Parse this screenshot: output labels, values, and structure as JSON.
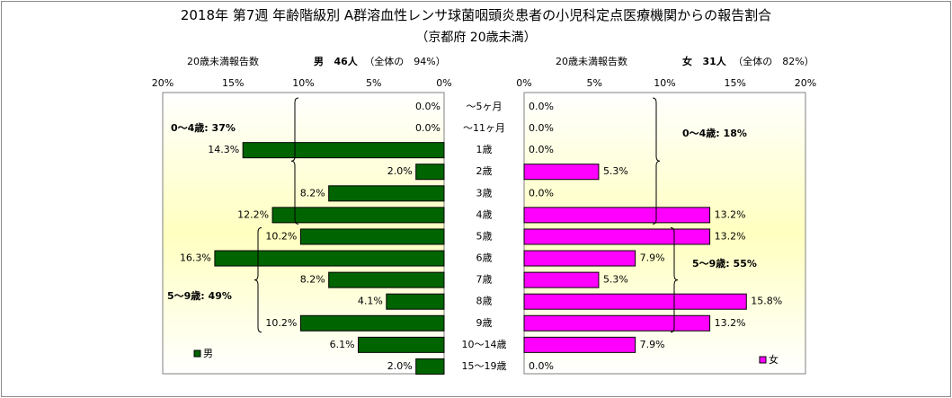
{
  "title": "2018年 第7週 年齢階級別 A群溶血性レンサ球菌咽頭炎患者の小児科定点医療機関からの報告割合",
  "subtitle": "（京都府 20歳未満）",
  "left_header": {
    "label": "20歳未満報告数",
    "sex": "男",
    "count": "46人",
    "ratio": "（全体の　94%）"
  },
  "right_header": {
    "label": "20歳未満報告数",
    "sex": "女",
    "count": "31人",
    "ratio": "（全体の　82%）"
  },
  "colors": {
    "male": "#006400",
    "female": "#ff00ff",
    "plot_bg_top": "#ffffff",
    "plot_bg_mid": "#ffffc0"
  },
  "chart_data": {
    "type": "bar",
    "orientation": "horizontal",
    "layout": "population-pyramid",
    "categories": [
      "～5ヶ月",
      "～11ヶ月",
      "1歳",
      "2歳",
      "3歳",
      "4歳",
      "5歳",
      "6歳",
      "7歳",
      "8歳",
      "9歳",
      "10～14歳",
      "15～19歳"
    ],
    "x_ticks": [
      "0%",
      "5%",
      "10%",
      "15%",
      "20%"
    ],
    "xlim": [
      0,
      20
    ],
    "series": [
      {
        "name": "男",
        "values": [
          0.0,
          0.0,
          14.3,
          2.0,
          8.2,
          12.2,
          10.2,
          16.3,
          8.2,
          4.1,
          10.2,
          6.1,
          2.0
        ],
        "labels": [
          "0.0%",
          "0.0%",
          "14.3%",
          "2.0%",
          "8.2%",
          "12.2%",
          "10.2%",
          "16.3%",
          "8.2%",
          "4.1%",
          "10.2%",
          "6.1%",
          "2.0%"
        ]
      },
      {
        "name": "女",
        "values": [
          0.0,
          0.0,
          0.0,
          5.3,
          0.0,
          13.2,
          13.2,
          7.9,
          5.3,
          15.8,
          13.2,
          7.9,
          0.0
        ],
        "labels": [
          "0.0%",
          "0.0%",
          "0.0%",
          "5.3%",
          "0.0%",
          "13.2%",
          "13.2%",
          "7.9%",
          "5.3%",
          "15.8%",
          "13.2%",
          "7.9%",
          "0.0%"
        ]
      }
    ],
    "annotations": {
      "male": [
        {
          "text": "0～4歳: 37%",
          "from": 0,
          "to": 5
        },
        {
          "text": "5～9歳: 49%",
          "from": 6,
          "to": 10
        }
      ],
      "female": [
        {
          "text": "0～4歳: 18%",
          "from": 0,
          "to": 5
        },
        {
          "text": "5～9歳: 55%",
          "from": 6,
          "to": 10
        }
      ]
    },
    "legend_position": "bottom-left / bottom-right"
  }
}
